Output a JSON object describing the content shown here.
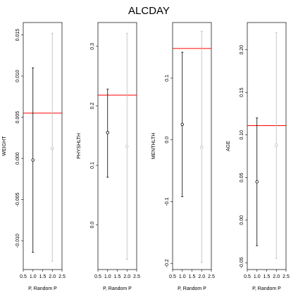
{
  "title": "ALCDAY",
  "colors": {
    "observed": "#000000",
    "random": "#bbbbbb",
    "reference": "#ff0000"
  },
  "chart_data": [
    {
      "type": "scatter",
      "title": "ALCDAY",
      "ylabel": "WEIGHT",
      "xlabel": "P, Random P",
      "xlim": [
        0.5,
        2.5
      ],
      "xticks": [
        "0.5",
        "1.0",
        "1.5",
        "2.0",
        "2.5"
      ],
      "ylim": [
        -0.0135,
        0.0165
      ],
      "yticks": [
        "-0.010",
        "-0.005",
        "0.000",
        "0.005",
        "0.010",
        "0.015"
      ],
      "reference_line": 0.0055,
      "points": [
        {
          "series": "P",
          "x": 1,
          "y": -0.0002,
          "low": -0.0114,
          "high": 0.011
        },
        {
          "series": "Random P",
          "x": 2,
          "y": 0.0012,
          "low": -0.0125,
          "high": 0.0152
        }
      ]
    },
    {
      "type": "scatter",
      "ylabel": "PHYSHLTH",
      "xlabel": "P, Random P",
      "xlim": [
        0.5,
        2.5
      ],
      "xticks": [
        "0.5",
        "1.0",
        "1.5",
        "2.0",
        "2.5"
      ],
      "ylim": [
        -0.075,
        0.34
      ],
      "yticks": [
        "0.0",
        "0.1",
        "0.2",
        "0.3"
      ],
      "reference_line": 0.218,
      "points": [
        {
          "series": "P",
          "x": 1,
          "y": 0.155,
          "low": 0.08,
          "high": 0.228
        },
        {
          "series": "Random P",
          "x": 2,
          "y": 0.132,
          "low": -0.058,
          "high": 0.322
        }
      ]
    },
    {
      "type": "scatter",
      "ylabel": "MENTHLTH",
      "xlabel": "P, Random P",
      "xlim": [
        0.5,
        2.5
      ],
      "xticks": [
        "0.5",
        "1.0",
        "1.5",
        "2.0",
        "2.5"
      ],
      "ylim": [
        -0.21,
        0.19
      ],
      "yticks": [
        "-0.2",
        "-0.1",
        "0.0",
        "0.1"
      ],
      "reference_line": 0.148,
      "points": [
        {
          "series": "P",
          "x": 1,
          "y": 0.025,
          "low": -0.092,
          "high": 0.142
        },
        {
          "series": "Random P",
          "x": 2,
          "y": -0.012,
          "low": -0.198,
          "high": 0.176
        }
      ]
    },
    {
      "type": "scatter",
      "ylabel": "AGE",
      "xlabel": "P, Random P",
      "xlim": [
        0.5,
        2.5
      ],
      "xticks": [
        "0.5",
        "1.0",
        "1.5",
        "2.0",
        "2.5"
      ],
      "ylim": [
        -0.058,
        0.232
      ],
      "yticks": [
        "-0.05",
        "0.00",
        "0.05",
        "0.10",
        "0.15",
        "0.20"
      ],
      "reference_line": 0.111,
      "points": [
        {
          "series": "P",
          "x": 1,
          "y": 0.045,
          "low": -0.03,
          "high": 0.12
        },
        {
          "series": "Random P",
          "x": 2,
          "y": 0.088,
          "low": -0.045,
          "high": 0.22
        }
      ]
    }
  ]
}
